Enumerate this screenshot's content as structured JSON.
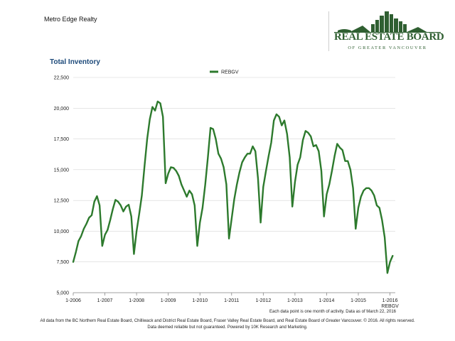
{
  "header": {
    "company": "Metro Edge Realty",
    "logo_title": "REAL ESTATE BOARD",
    "logo_subtitle": "OF GREATER VANCOUVER"
  },
  "colors": {
    "line": "#2d7a2d",
    "title": "#1d4a7a",
    "logo": "#2f5f31"
  },
  "chart_data": {
    "type": "line",
    "title": "Total Inventory",
    "xlabel": "",
    "ylabel": "",
    "legend": "top-center",
    "ylim": [
      5000,
      22500
    ],
    "yticks": [
      5000,
      7500,
      10000,
      12500,
      15000,
      17500,
      20000,
      22500
    ],
    "ytick_labels": [
      "5,000",
      "7,500",
      "10,000",
      "12,500",
      "15,000",
      "17,500",
      "20,000",
      "22,500"
    ],
    "xlim": [
      0,
      122
    ],
    "xticks": [
      0,
      12,
      24,
      36,
      48,
      60,
      72,
      84,
      96,
      108,
      120
    ],
    "xtick_labels": [
      "1-2006",
      "1-2007",
      "1-2008",
      "1-2009",
      "1-2010",
      "1-2011",
      "1-2012",
      "1-2013",
      "1-2014",
      "1-2015",
      "1-2016"
    ],
    "series": [
      {
        "name": "REBGV",
        "values": [
          7500,
          8300,
          9200,
          9600,
          10200,
          10600,
          11100,
          11300,
          12400,
          12850,
          12100,
          8800,
          9700,
          10100,
          10900,
          11800,
          12550,
          12400,
          12100,
          11600,
          12000,
          12150,
          11200,
          8150,
          10000,
          11400,
          12900,
          15300,
          17500,
          19100,
          20100,
          19800,
          20550,
          20400,
          19300,
          13900,
          14700,
          15200,
          15150,
          14900,
          14500,
          13800,
          13300,
          12800,
          13300,
          13000,
          12100,
          8800,
          10700,
          11900,
          13800,
          16000,
          18400,
          18300,
          17500,
          16300,
          15900,
          15200,
          13800,
          9400,
          11000,
          12600,
          13800,
          14800,
          15600,
          16000,
          16300,
          16300,
          16900,
          16500,
          14300,
          10700,
          13600,
          14900,
          16100,
          17200,
          19000,
          19500,
          19300,
          18600,
          19000,
          17900,
          16000,
          12000,
          14000,
          15400,
          16000,
          17400,
          18150,
          18000,
          17700,
          16900,
          17000,
          16500,
          14900,
          11200,
          13000,
          13800,
          14900,
          16100,
          17100,
          16800,
          16600,
          15700,
          15700,
          15000,
          13500,
          10200,
          11900,
          12800,
          13300,
          13500,
          13500,
          13300,
          12900,
          12100,
          11900,
          10900,
          9500,
          6600,
          7500,
          8000
        ]
      }
    ],
    "note": "Each data point is one month of activity. Data as of March 22, 2016",
    "legend_repeat": "REBGV"
  },
  "footer": {
    "line1": "All data from the BC Northern Real Estate Board, Chilliwack and District Real Estate Board, Fraser Valley Real Estate Board, and Real Estate Board of Greater Vancouver. © 2016. All rights reserved.",
    "line2": "Data deemed reliable but not guaranteed. Powered by 10K Research and Marketing."
  }
}
